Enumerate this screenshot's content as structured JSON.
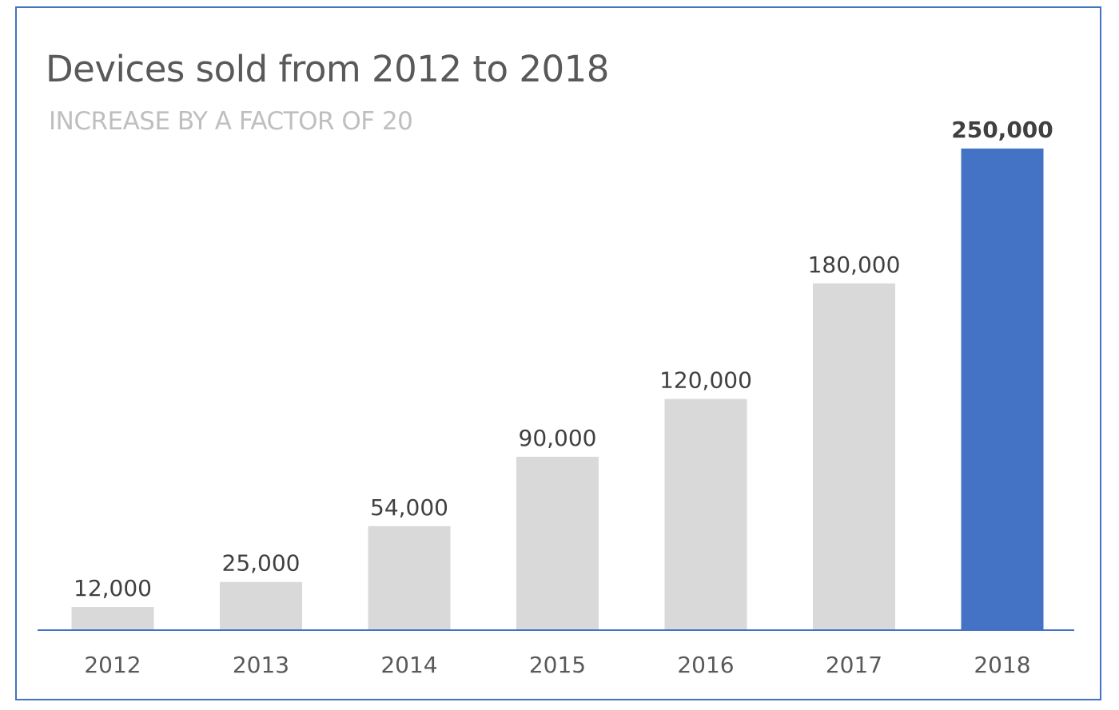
{
  "chart_data": {
    "type": "bar",
    "title": "Devices sold from 2012 to 2018",
    "subtitle": "INCREASE BY A FACTOR OF 20",
    "categories": [
      "2012",
      "2013",
      "2014",
      "2015",
      "2016",
      "2017",
      "2018"
    ],
    "values": [
      12000,
      25000,
      54000,
      90000,
      120000,
      180000,
      250000
    ],
    "data_labels": [
      "12,000",
      "25,000",
      "54,000",
      "90,000",
      "120,000",
      "180,000",
      "250,000"
    ],
    "highlight_category": "2018",
    "ylim": [
      0,
      250000
    ],
    "grid": false,
    "legend": "none",
    "colors": {
      "bar": "#d9d9d9",
      "highlight": "#4472c4",
      "axis": "#4472c4",
      "frame": "#4472c4"
    }
  }
}
